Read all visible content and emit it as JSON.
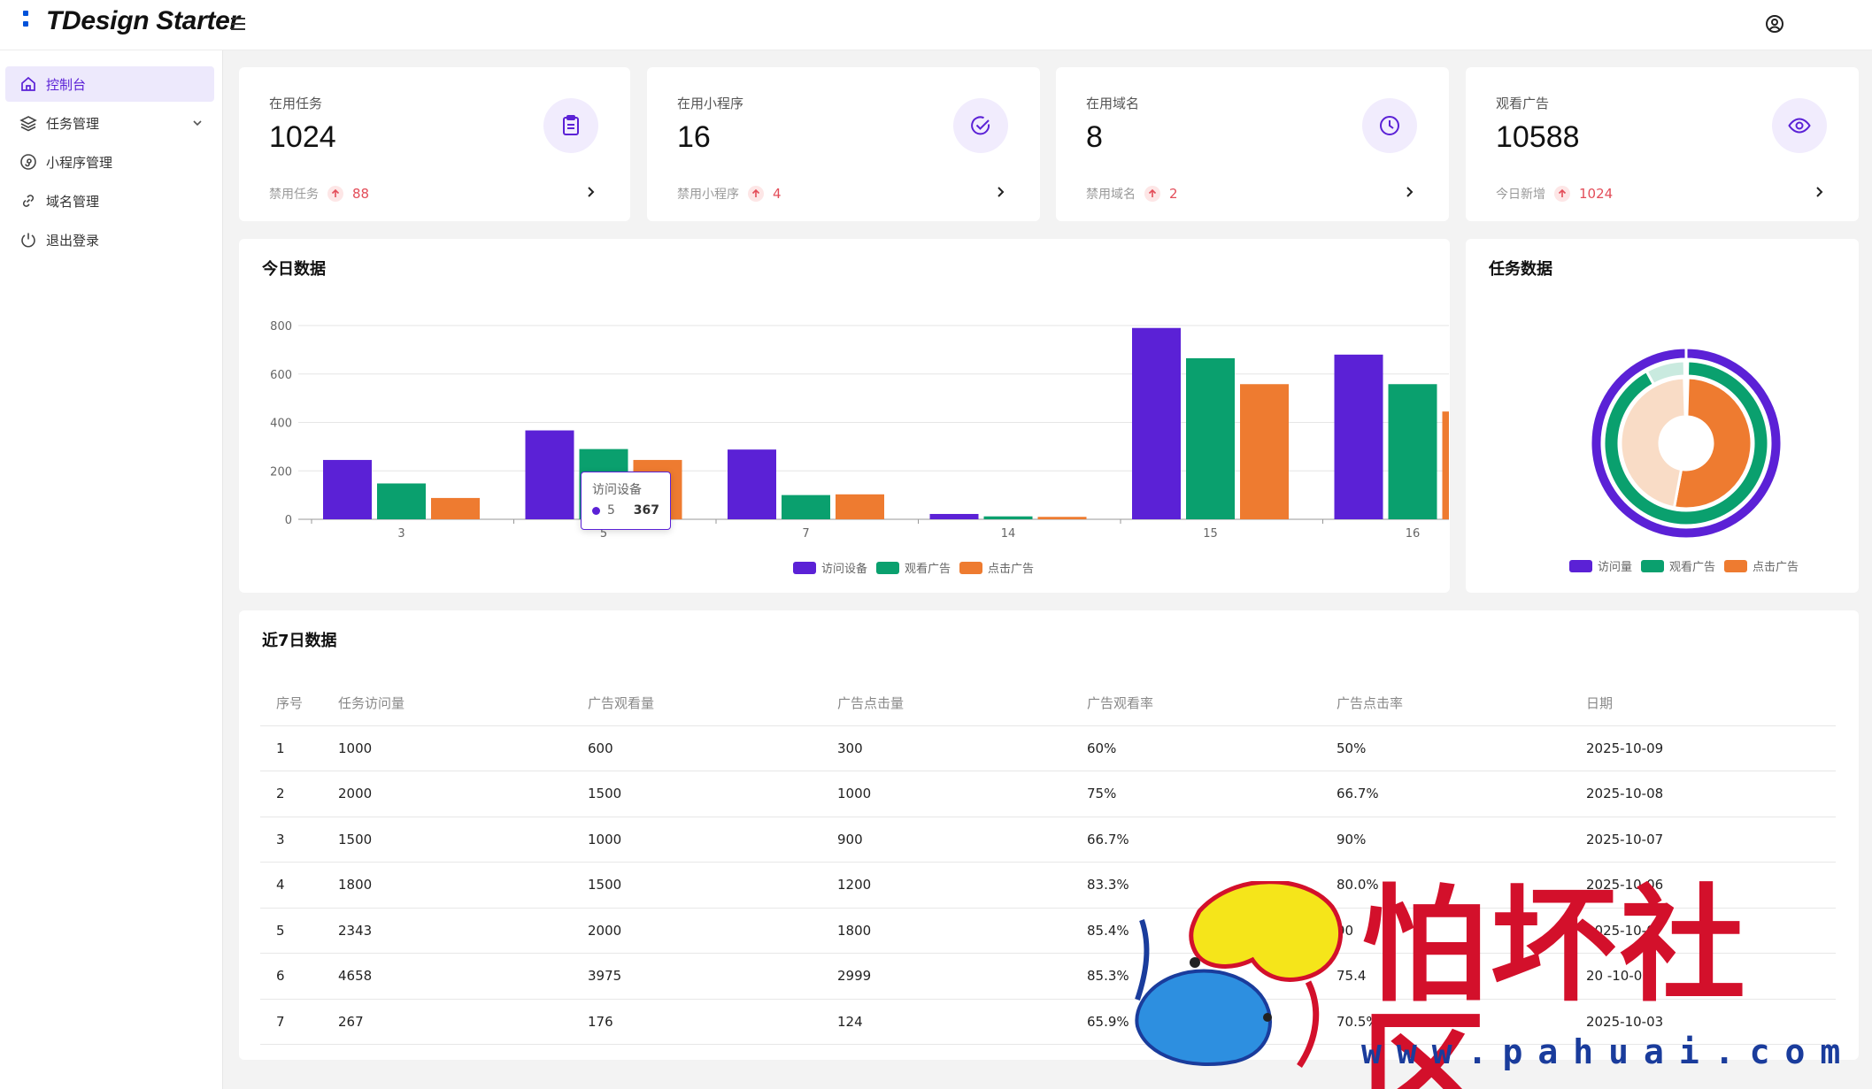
{
  "app": {
    "title": "TDesign Starter"
  },
  "sidebar": {
    "items": [
      {
        "label": "控制台",
        "icon": "home-icon",
        "active": true
      },
      {
        "label": "任务管理",
        "icon": "layers-icon",
        "expandable": true
      },
      {
        "label": "小程序管理",
        "icon": "mini-program-icon"
      },
      {
        "label": "域名管理",
        "icon": "link-icon"
      },
      {
        "label": "退出登录",
        "icon": "power-icon"
      }
    ]
  },
  "stats": [
    {
      "label": "在用任务",
      "value": "1024",
      "sub_label": "禁用任务",
      "sub_value": "88",
      "icon": "clipboard-icon"
    },
    {
      "label": "在用小程序",
      "value": "16",
      "sub_label": "禁用小程序",
      "sub_value": "4",
      "icon": "check-circle-icon"
    },
    {
      "label": "在用域名",
      "value": "8",
      "sub_label": "禁用域名",
      "sub_value": "2",
      "icon": "clock-icon"
    },
    {
      "label": "观看广告",
      "value": "10588",
      "sub_label": "今日新增",
      "sub_value": "1024",
      "icon": "eye-icon"
    }
  ],
  "today_chart": {
    "title": "今日数据",
    "legend": [
      "访问设备",
      "观看广告",
      "点击广告"
    ],
    "tooltip": {
      "series": "访问设备",
      "category": "5",
      "value": "367"
    }
  },
  "task_chart": {
    "title": "任务数据",
    "legend": [
      "访问量",
      "观看广告",
      "点击广告"
    ]
  },
  "colors": {
    "accent": "#5b21d6",
    "purple": "#5b21d6",
    "green": "#0aa06e",
    "orange": "#ee7b30",
    "up": "#e34d59"
  },
  "chart_data": [
    {
      "type": "bar",
      "title": "今日数据",
      "categories": [
        "3",
        "5",
        "7",
        "14",
        "15",
        "16"
      ],
      "series": [
        {
          "name": "访问设备",
          "values": [
            245,
            367,
            288,
            22,
            790,
            680
          ]
        },
        {
          "name": "观看广告",
          "values": [
            148,
            290,
            100,
            12,
            665,
            558
          ]
        },
        {
          "name": "点击广告",
          "values": [
            88,
            245,
            103,
            10,
            558,
            445
          ]
        }
      ],
      "ylim": [
        0,
        800
      ],
      "yticks": [
        "0",
        "200",
        "400",
        "600",
        "800"
      ],
      "grid": true,
      "legend_position": "bottom"
    },
    {
      "type": "pie",
      "title": "任务数据",
      "series": [
        {
          "name": "访问量",
          "values": [
            1
          ]
        },
        {
          "name": "观看广告",
          "values": [
            92,
            8
          ]
        },
        {
          "name": "点击广告",
          "values": [
            50,
            44
          ]
        }
      ],
      "legend_position": "bottom"
    }
  ],
  "table": {
    "title": "近7日数据",
    "columns": [
      "序号",
      "任务访问量",
      "广告观看量",
      "广告点击量",
      "广告观看率",
      "广告点击率",
      "日期"
    ],
    "rows": [
      [
        "1",
        "1000",
        "600",
        "300",
        "60%",
        "50%",
        "2025-10-09"
      ],
      [
        "2",
        "2000",
        "1500",
        "1000",
        "75%",
        "66.7%",
        "2025-10-08"
      ],
      [
        "3",
        "1500",
        "1000",
        "900",
        "66.7%",
        "90%",
        "2025-10-07"
      ],
      [
        "4",
        "1800",
        "1500",
        "1200",
        "83.3%",
        "80.0%",
        "2025-10-06"
      ],
      [
        "5",
        "2343",
        "2000",
        "1800",
        "85.4%",
        "90",
        "2025-10-0"
      ],
      [
        "6",
        "4658",
        "3975",
        "2999",
        "85.3%",
        "75.4",
        "20 -10-0"
      ],
      [
        "7",
        "267",
        "176",
        "124",
        "65.9%",
        "70.5%",
        "2025-10-03"
      ]
    ]
  },
  "watermark": {
    "text": "怕坏社区",
    "url": "www.pahuai.com"
  }
}
